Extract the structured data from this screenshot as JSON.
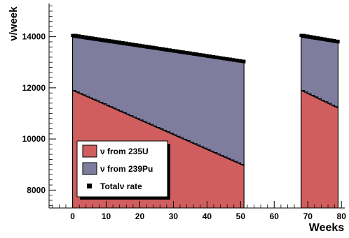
{
  "chart_data": {
    "type": "area",
    "xlabel": "Weeks",
    "ylabel": "ν/week",
    "xlim": [
      -7,
      81
    ],
    "ylim": [
      7300,
      15300
    ],
    "x_ticks": [
      0,
      10,
      20,
      30,
      40,
      50,
      60,
      70,
      80
    ],
    "y_ticks": [
      8000,
      10000,
      12000,
      14000
    ],
    "grid": false,
    "legend_position": "bottom-left",
    "segments": [
      {
        "x_start": 0,
        "x_end": 51,
        "series": [
          {
            "name": "ν from 235U",
            "stack_bottom": 7300,
            "y_start": 11900,
            "y_end": 8950
          },
          {
            "name": "ν from 239Pu",
            "stack_top_start": 13980,
            "stack_top_end": 12980
          },
          {
            "name": "Totalν rate",
            "y_start": 14050,
            "y_end": 13020
          }
        ]
      },
      {
        "x_start": 68,
        "x_end": 79,
        "series": [
          {
            "name": "ν from 235U",
            "stack_bottom": 7300,
            "y_start": 11900,
            "y_end": 11200
          },
          {
            "name": "ν from 239Pu",
            "stack_top_start": 13980,
            "stack_top_end": 13750
          },
          {
            "name": "Totalν rate",
            "y_start": 14050,
            "y_end": 13800
          }
        ]
      }
    ],
    "legend": [
      {
        "label": "ν from 235U",
        "color": "#d05e5e",
        "kind": "fill"
      },
      {
        "label": "ν from 239Pu",
        "color": "#7e7d9e",
        "kind": "fill"
      },
      {
        "label": "Totalν rate",
        "color": "#000000",
        "kind": "marker"
      }
    ],
    "colors": {
      "u235": "#d05e5e",
      "pu239": "#7e7d9e",
      "total": "#000000"
    }
  }
}
